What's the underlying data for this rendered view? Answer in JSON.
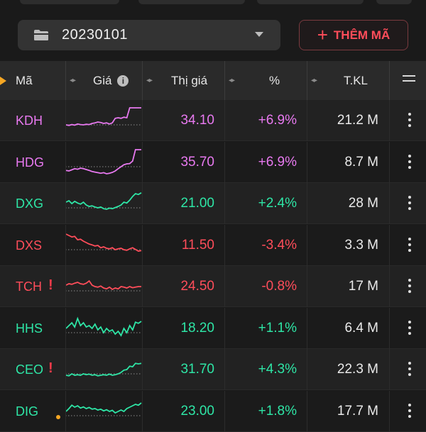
{
  "toolbar": {
    "watchlist_value": "20230101",
    "add_button_label": "THÊM MÃ"
  },
  "colors": {
    "up_purple": "#e879f0",
    "up_green": "#2ee6a6",
    "down_red": "#ff4d5a",
    "warning_orange": "#f5a623"
  },
  "header": {
    "symbol": "Mã",
    "price_chart": "Giá",
    "last_price": "Thị giá",
    "change_pct": "%",
    "volume": "T.KL"
  },
  "rows": [
    {
      "symbol": "KDH",
      "price": "34.10",
      "change": "+6.9%",
      "volume": "21.2 M",
      "color": "#e879f0",
      "flag": "",
      "spark": [
        0.35,
        0.33,
        0.36,
        0.34,
        0.38,
        0.36,
        0.35,
        0.37,
        0.36,
        0.4,
        0.42,
        0.45,
        0.43,
        0.4,
        0.42,
        0.38,
        0.42,
        0.58,
        0.6,
        0.58,
        0.62,
        0.6,
        0.95,
        0.95,
        0.95,
        0.95,
        0.95
      ]
    },
    {
      "symbol": "HDG",
      "price": "35.70",
      "change": "+6.9%",
      "volume": "8.7 M",
      "color": "#e879f0",
      "flag": "",
      "spark": [
        0.22,
        0.2,
        0.24,
        0.28,
        0.26,
        0.3,
        0.28,
        0.25,
        0.22,
        0.18,
        0.16,
        0.14,
        0.12,
        0.14,
        0.1,
        0.12,
        0.15,
        0.2,
        0.28,
        0.35,
        0.42,
        0.45,
        0.46,
        0.55,
        0.95,
        0.95,
        0.95
      ]
    },
    {
      "symbol": "DXG",
      "price": "21.00",
      "change": "+2.4%",
      "volume": "28 M",
      "color": "#2ee6a6",
      "flag": "",
      "spark": [
        0.55,
        0.6,
        0.5,
        0.58,
        0.52,
        0.48,
        0.55,
        0.45,
        0.4,
        0.42,
        0.38,
        0.35,
        0.38,
        0.32,
        0.3,
        0.34,
        0.32,
        0.36,
        0.4,
        0.45,
        0.55,
        0.52,
        0.62,
        0.75,
        0.85,
        0.82,
        0.88
      ]
    },
    {
      "symbol": "DXS",
      "price": "11.50",
      "change": "-3.4%",
      "volume": "3.3 M",
      "color": "#ff4d5a",
      "flag": "",
      "spark": [
        0.9,
        0.85,
        0.8,
        0.82,
        0.7,
        0.72,
        0.65,
        0.6,
        0.55,
        0.52,
        0.48,
        0.5,
        0.42,
        0.45,
        0.4,
        0.38,
        0.42,
        0.35,
        0.38,
        0.4,
        0.35,
        0.33,
        0.38,
        0.42,
        0.36,
        0.3,
        0.32
      ]
    },
    {
      "symbol": "TCH",
      "price": "24.50",
      "change": "-0.8%",
      "volume": "17 M",
      "color": "#ff4d5a",
      "flag": "alert",
      "spark": [
        0.55,
        0.6,
        0.58,
        0.62,
        0.65,
        0.6,
        0.58,
        0.62,
        0.7,
        0.55,
        0.5,
        0.48,
        0.52,
        0.45,
        0.42,
        0.48,
        0.4,
        0.45,
        0.42,
        0.5,
        0.48,
        0.45,
        0.5,
        0.46,
        0.48,
        0.5,
        0.5
      ]
    },
    {
      "symbol": "HHS",
      "price": "18.20",
      "change": "+1.1%",
      "volume": "6.4 M",
      "color": "#2ee6a6",
      "flag": "",
      "spark": [
        0.5,
        0.6,
        0.7,
        0.55,
        0.85,
        0.6,
        0.7,
        0.55,
        0.6,
        0.5,
        0.65,
        0.45,
        0.55,
        0.35,
        0.5,
        0.4,
        0.45,
        0.3,
        0.4,
        0.25,
        0.5,
        0.35,
        0.6,
        0.45,
        0.72,
        0.68,
        0.75
      ]
    },
    {
      "symbol": "CEO",
      "price": "31.70",
      "change": "+4.3%",
      "volume": "22.3 M",
      "color": "#2ee6a6",
      "flag": "alert",
      "spark": [
        0.3,
        0.28,
        0.35,
        0.3,
        0.32,
        0.3,
        0.35,
        0.32,
        0.34,
        0.3,
        0.32,
        0.28,
        0.3,
        0.32,
        0.3,
        0.34,
        0.3,
        0.32,
        0.35,
        0.4,
        0.48,
        0.5,
        0.62,
        0.6,
        0.72,
        0.7,
        0.72
      ]
    },
    {
      "symbol": "DIG",
      "price": "23.00",
      "change": "+1.8%",
      "volume": "17.7 M",
      "color": "#2ee6a6",
      "flag": "dot",
      "spark": [
        0.5,
        0.6,
        0.72,
        0.65,
        0.7,
        0.62,
        0.66,
        0.6,
        0.64,
        0.58,
        0.6,
        0.55,
        0.58,
        0.52,
        0.56,
        0.5,
        0.54,
        0.45,
        0.5,
        0.55,
        0.5,
        0.6,
        0.65,
        0.7,
        0.75,
        0.72,
        0.8
      ]
    }
  ]
}
